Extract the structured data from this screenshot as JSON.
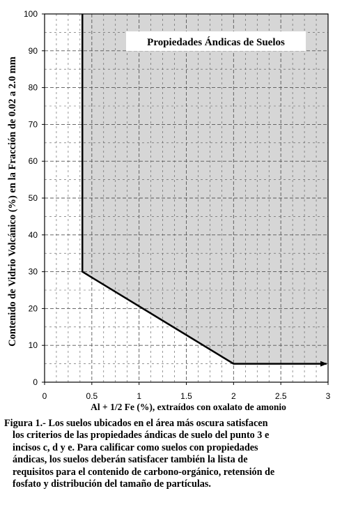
{
  "chart_data": {
    "type": "line",
    "title": "",
    "annotation": "Propiedades Ándicas de Suelos",
    "xlabel": "Al + 1/2 Fe (%), extraídos con oxalato de amonio",
    "ylabel": "Contenido de Vidrio Volcánico (%) en la Fracción de 0.02 a 2.0 mm",
    "xlim": [
      0,
      3
    ],
    "ylim": [
      0,
      100
    ],
    "x_ticks": [
      "0",
      "0.5",
      "1",
      "1.5",
      "2",
      "2.5",
      "3"
    ],
    "y_ticks": [
      "0",
      "10",
      "20",
      "30",
      "40",
      "50",
      "60",
      "70",
      "80",
      "90",
      "100"
    ],
    "grid": "dashed",
    "series": [
      {
        "x": [
          0.4,
          0.4,
          2.0,
          3.0
        ],
        "y": [
          100,
          30,
          5,
          5
        ],
        "arrow_end": true
      }
    ],
    "shaded_region": "above-right of boundary (Propiedades Ándicas)",
    "colors": {
      "shade": "#d6d6d6",
      "line": "#000000",
      "grid": "#555555"
    }
  },
  "caption": {
    "lines": [
      "Figura 1.- Los suelos ubicados en el área más oscura satisfacen",
      "los criterios de las propiedades ándicas de suelo del punto 3 e",
      "incisos c, d y e. Para calificar como suelos con propiedades",
      "ándicas, los suelos deberán satisfacer también la lista de",
      "requisitos para el contenido de carbono-orgánico, retensión de",
      "fosfato y distribución del tamaño de partículas."
    ]
  }
}
